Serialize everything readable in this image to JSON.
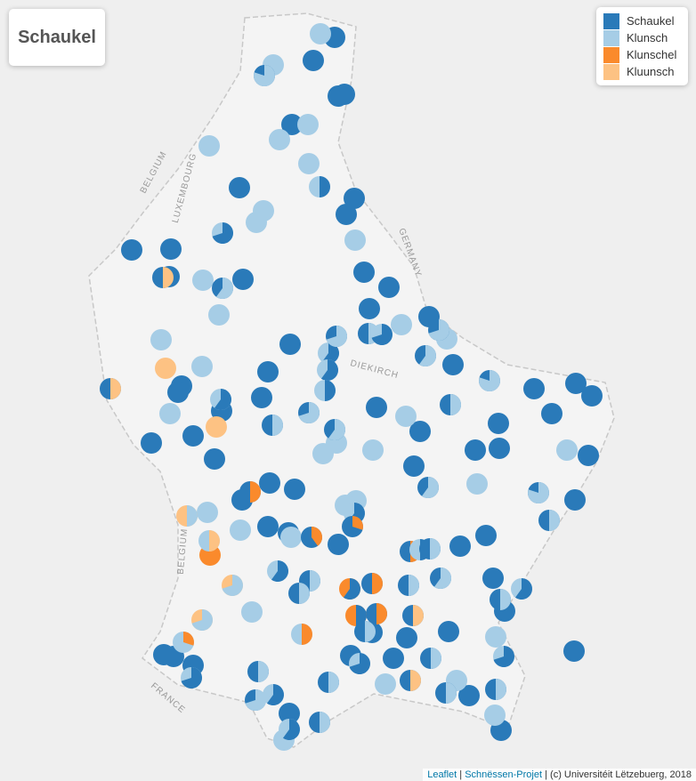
{
  "title": "Schaukel",
  "legend": [
    {
      "name": "Schaukel",
      "color": "#2a7ab9"
    },
    {
      "name": "Klunsch",
      "color": "#a6cde6"
    },
    {
      "name": "Klunschel",
      "color": "#fa8a2c"
    },
    {
      "name": "Kluunsch",
      "color": "#fdc283"
    }
  ],
  "map_labels": [
    "BELGIUM",
    "LUXEMBOURG",
    "GERMANY",
    "DIEKIRCH",
    "BELGIUM",
    "FRANCE"
  ],
  "attribution": {
    "leaflet": "Leaflet",
    "separator": "|",
    "project": "Schnëssen-Projet",
    "rights": "(c) Universitéit Lëtzebuerg, 2018"
  }
}
